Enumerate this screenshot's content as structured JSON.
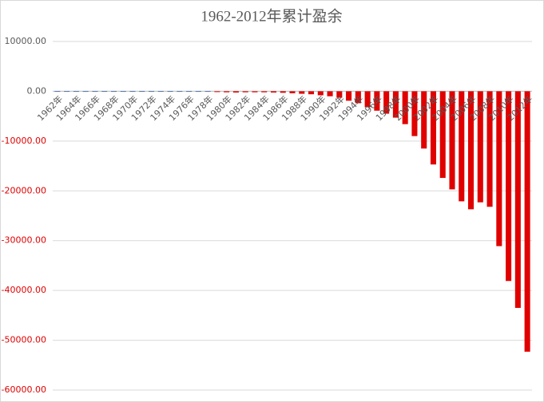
{
  "chart_data": {
    "type": "bar",
    "title": "1962-2012年累计盈余",
    "categories": [
      "1962年",
      null,
      "1964年",
      null,
      "1966年",
      null,
      "1968年",
      null,
      "1970年",
      null,
      "1972年",
      null,
      "1974年",
      null,
      "1976年",
      null,
      "1978年",
      null,
      "1980年",
      null,
      "1982年",
      null,
      "1984年",
      null,
      "1986年",
      null,
      "1988年",
      null,
      "1990年",
      null,
      "1992年",
      null,
      "1994年",
      null,
      "1996年",
      null,
      "1998年",
      null,
      "2000年",
      null,
      "2002年",
      null,
      "2004年",
      null,
      "2006年",
      null,
      "2008年",
      null,
      "2010年",
      null,
      "2012年"
    ],
    "values": [
      50,
      50,
      50,
      50,
      50,
      50,
      50,
      50,
      50,
      50,
      50,
      50,
      50,
      50,
      50,
      50,
      50,
      -100,
      -200,
      -250,
      -200,
      -200,
      -200,
      -250,
      -300,
      -400,
      -500,
      -600,
      -800,
      -1000,
      -1300,
      -1900,
      -2400,
      -3200,
      -3900,
      -4500,
      -5300,
      -6600,
      -9000,
      -11500,
      -14700,
      -17400,
      -19700,
      -22100,
      -23700,
      -22300,
      -23200,
      -31100,
      -38100,
      -43500,
      -52300
    ],
    "color": "#4f6fa8",
    "negative_color": "#e00000",
    "ylim": [
      -60000,
      10000
    ],
    "yticks": [
      {
        "value": -60000,
        "label": "-60000.00"
      },
      {
        "value": -50000,
        "label": "-50000.00"
      },
      {
        "value": -40000,
        "label": "-40000.00"
      },
      {
        "value": -30000,
        "label": "-30000.00"
      },
      {
        "value": -20000,
        "label": "-20000.00"
      },
      {
        "value": -10000,
        "label": "-10000.00"
      },
      {
        "value": 0,
        "label": "0.00"
      },
      {
        "value": 10000,
        "label": "10000.00"
      }
    ],
    "grid": true
  }
}
